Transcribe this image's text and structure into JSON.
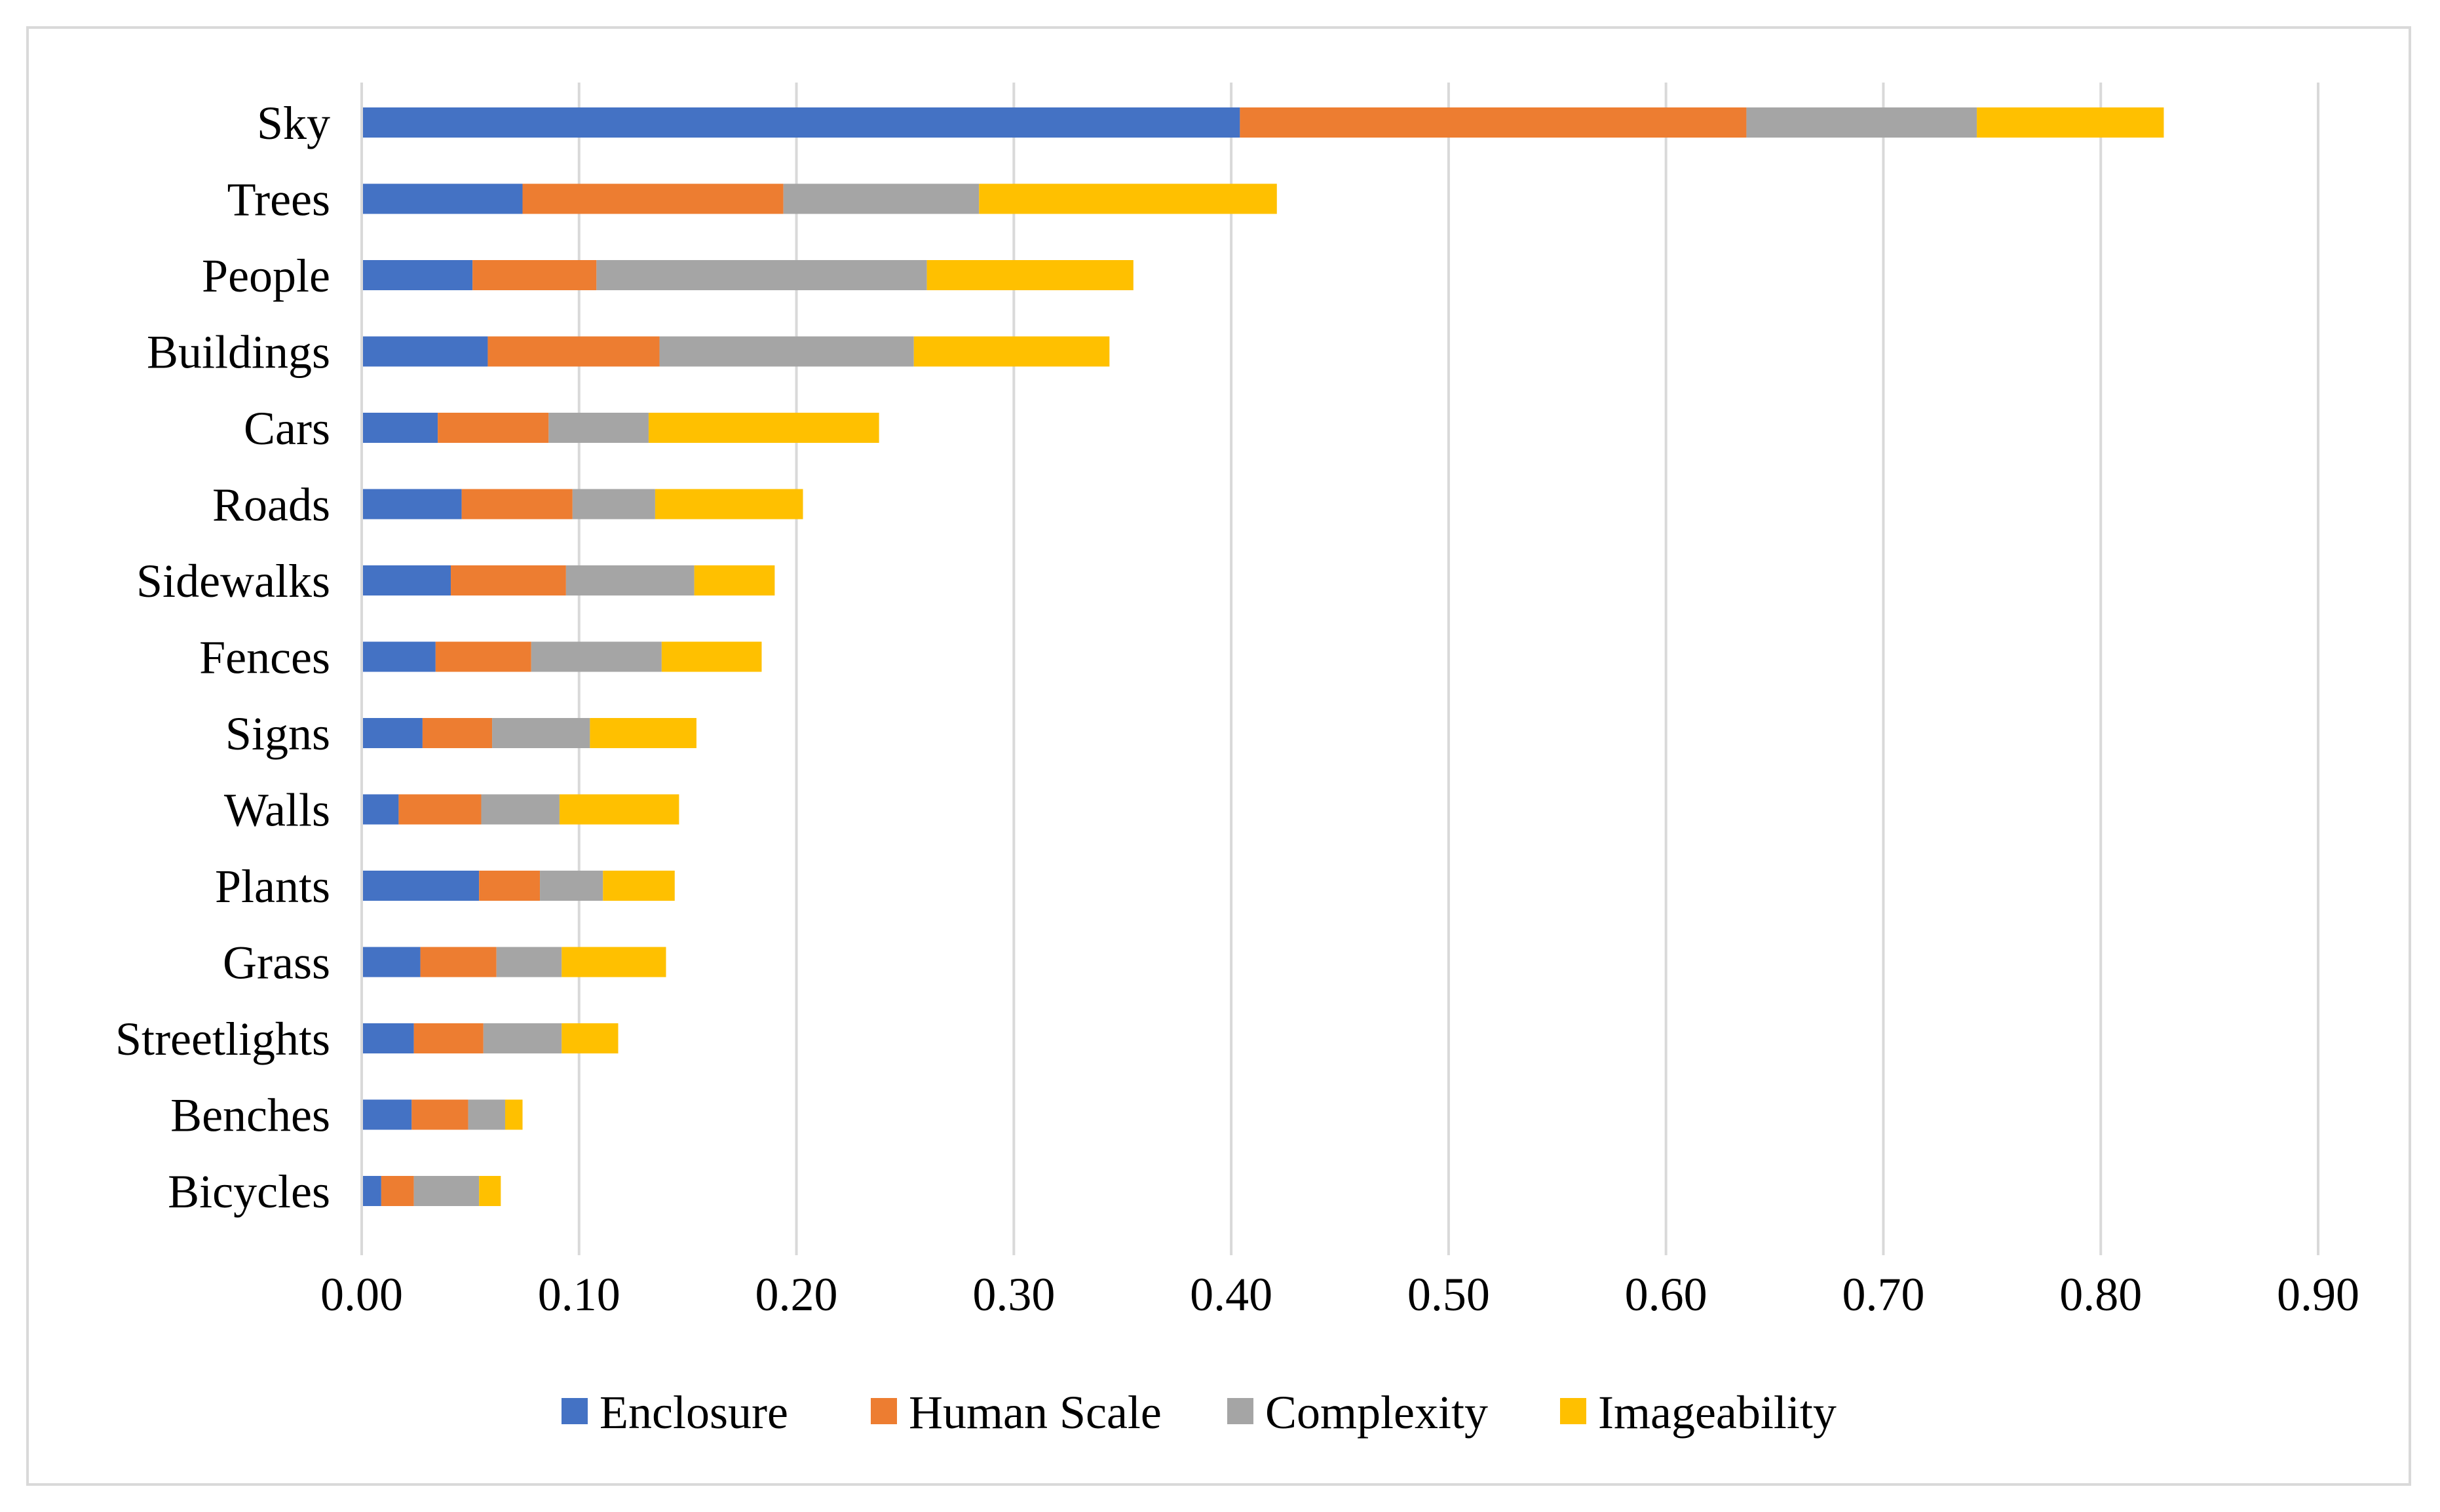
{
  "chart_data": {
    "type": "bar",
    "orientation": "horizontal",
    "stacked": true,
    "title": "",
    "xlabel": "",
    "ylabel": "",
    "xlim": [
      0,
      0.9
    ],
    "x_ticks": [
      "0.00",
      "0.10",
      "0.20",
      "0.30",
      "0.40",
      "0.50",
      "0.60",
      "0.70",
      "0.80",
      "0.90"
    ],
    "grid": "vertical",
    "legend_position": "bottom",
    "categories": [
      "Sky",
      "Trees",
      "People",
      "Buildings",
      "Cars",
      "Roads",
      "Sidewalks",
      "Fences",
      "Signs",
      "Walls",
      "Plants",
      "Grass",
      "Streetlights",
      "Benches",
      "Bicycles"
    ],
    "series": [
      {
        "name": "Enclosure",
        "color": "#4472c4",
        "values": [
          0.404,
          0.074,
          0.051,
          0.058,
          0.035,
          0.046,
          0.041,
          0.034,
          0.028,
          0.017,
          0.054,
          0.027,
          0.024,
          0.023,
          0.009
        ]
      },
      {
        "name": "Human Scale",
        "color": "#ed7d31",
        "values": [
          0.233,
          0.12,
          0.057,
          0.079,
          0.051,
          0.051,
          0.053,
          0.044,
          0.032,
          0.038,
          0.028,
          0.035,
          0.032,
          0.026,
          0.015
        ]
      },
      {
        "name": "Complexity",
        "color": "#a5a5a5",
        "values": [
          0.106,
          0.09,
          0.152,
          0.117,
          0.046,
          0.038,
          0.059,
          0.06,
          0.045,
          0.036,
          0.029,
          0.03,
          0.036,
          0.017,
          0.03
        ]
      },
      {
        "name": "Imageability",
        "color": "#ffc000",
        "values": [
          0.086,
          0.137,
          0.095,
          0.09,
          0.106,
          0.068,
          0.037,
          0.046,
          0.049,
          0.055,
          0.033,
          0.048,
          0.026,
          0.008,
          0.01
        ]
      }
    ]
  },
  "colors": {
    "grid": "#d9d9d9",
    "axis": "#d9d9d9",
    "frame": "#d9d9d9",
    "text": "#000000"
  }
}
